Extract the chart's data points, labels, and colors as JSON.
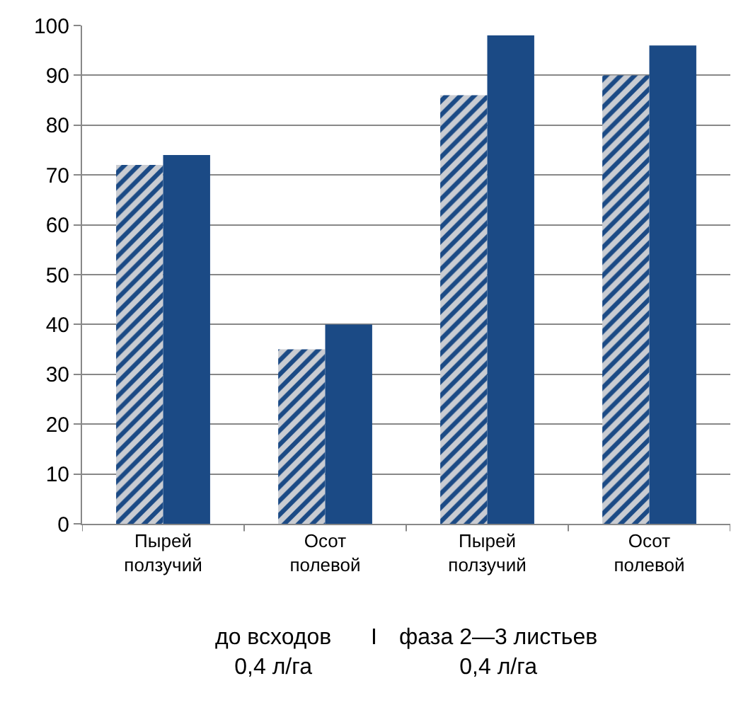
{
  "chart_data": {
    "type": "bar",
    "categories": [
      "Пырей ползучий",
      "Осот полевой",
      "Пырей ползучий",
      "Осот полевой"
    ],
    "series": [
      {
        "color": "#1b4a85",
        "values": [
          72,
          35,
          86,
          90
        ]
      },
      {
        "color": "#1b4a85",
        "values": [
          74,
          40,
          98,
          96
        ]
      }
    ],
    "ylim": [
      0,
      100
    ],
    "yticks": [
      0,
      10,
      20,
      30,
      40,
      50,
      60,
      70,
      80,
      90,
      100
    ],
    "grid": "y",
    "annotations": [
      "до всходов\n0,4 л/га",
      "I",
      "фаза 2—3 листьев\n0,4 л/га"
    ]
  }
}
